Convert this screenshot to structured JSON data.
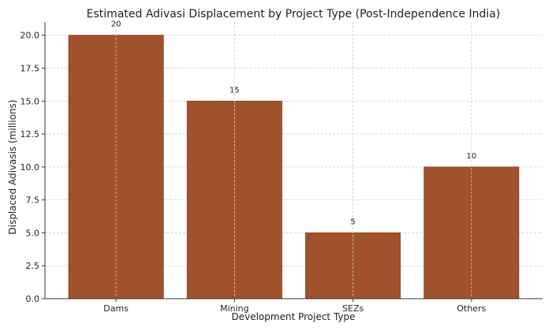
{
  "chart_data": {
    "type": "bar",
    "title": "Estimated Adivasi Displacement by Project Type (Post-Independence India)",
    "xlabel": "Development Project Type",
    "ylabel": "Displaced Adivasis (millions)",
    "categories": [
      "Dams",
      "Mining",
      "SEZs",
      "Others"
    ],
    "values": [
      20,
      15,
      5,
      10
    ],
    "data_labels": [
      "20",
      "15",
      "5",
      "10"
    ],
    "ylim": [
      0,
      21
    ],
    "yticks": [
      0,
      2.5,
      5,
      7.5,
      10,
      12.5,
      15,
      17.5,
      20
    ],
    "ytick_labels": [
      "0.0",
      "2.5",
      "5.0",
      "7.5",
      "10.0",
      "12.5",
      "15.0",
      "17.5",
      "20.0"
    ],
    "grid": true,
    "legend": "none",
    "bar_color": "#a0522d",
    "bar_edge_color": "#8b3e1f"
  }
}
